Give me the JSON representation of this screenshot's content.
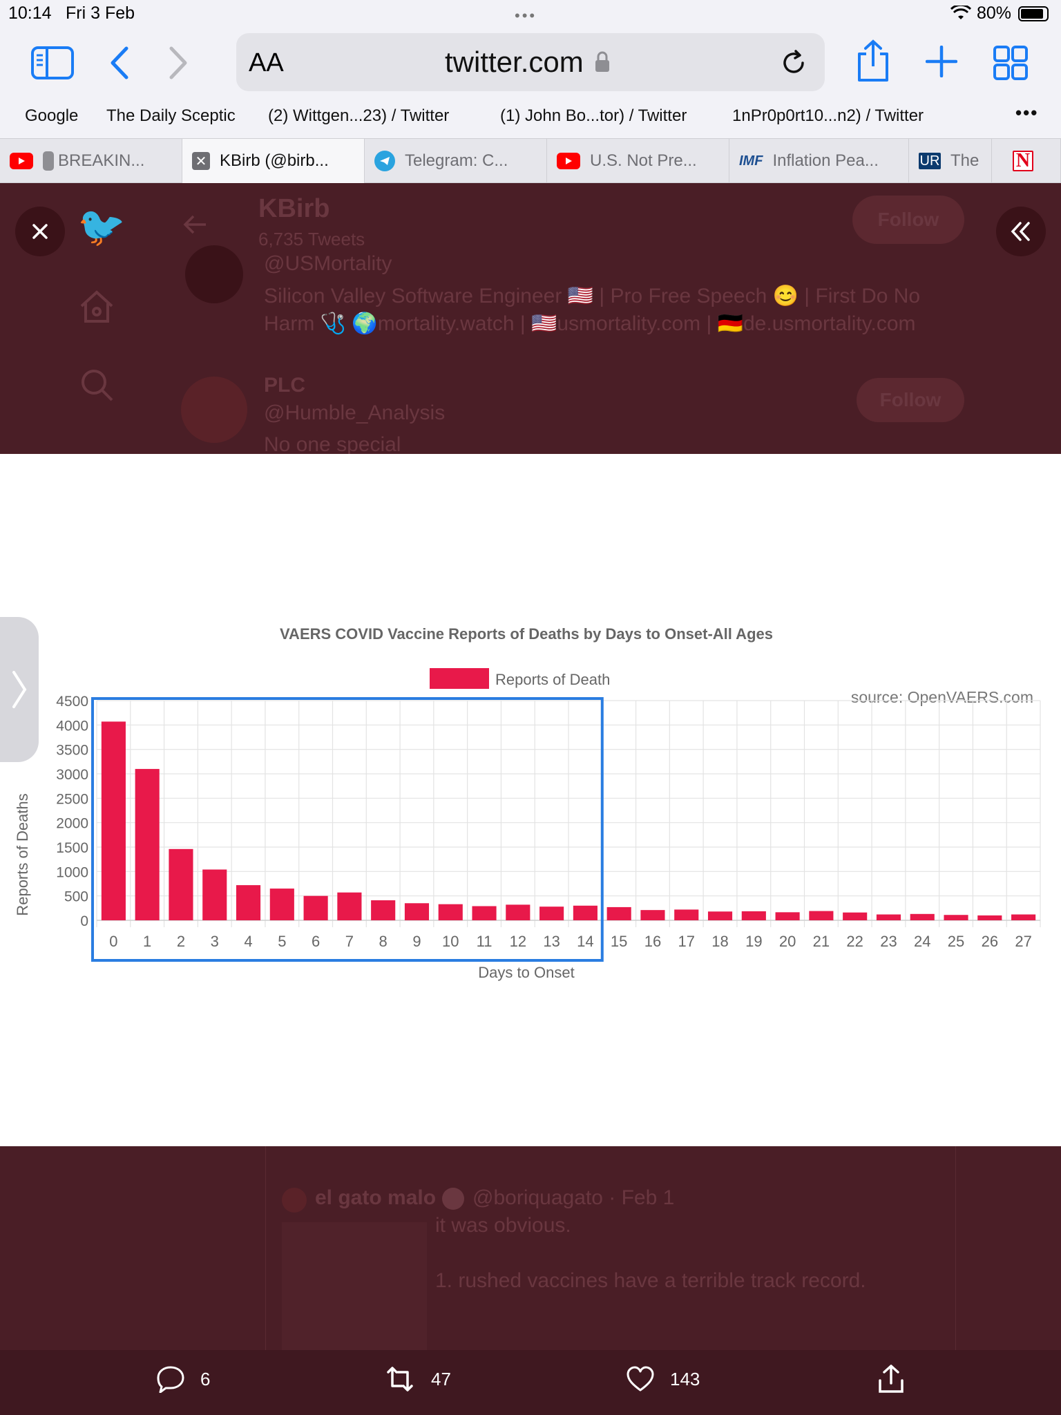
{
  "status": {
    "time": "10:14",
    "date": "Fri 3 Feb",
    "battery": "80%"
  },
  "toolbar": {
    "text_size": "AA",
    "url": "twitter.com"
  },
  "favorites": [
    "Google",
    "The Daily Sceptic",
    "(2) Wittgen...23) / Twitter",
    "(1) John Bo...tor) / Twitter",
    "1nPr0p0rt10...n2) / Twitter"
  ],
  "tabs": [
    {
      "label": "BREAKIN..."
    },
    {
      "label": "KBirb (@birb..."
    },
    {
      "label": "Telegram: C..."
    },
    {
      "label": "U.S. Not Pre..."
    },
    {
      "label": "Inflation Pea...",
      "badge": "IMF"
    },
    {
      "label": "The",
      "badge": "UR"
    },
    {
      "label": "",
      "badge": "N"
    }
  ],
  "background_top": {
    "profile1": {
      "name": "KBirb",
      "tweets": "6,735 Tweets",
      "handle": "@USMortality",
      "bio_line1": "Silicon Valley Software Engineer 🇺🇸 | Pro Free Speech 😊 | First Do No",
      "bio_line2": "Harm 🩺 🌍mortality.watch | 🇺🇸usmortality.com | 🇩🇪de.usmortality.com",
      "follow": "Follow"
    },
    "profile2": {
      "name": "PLC",
      "handle": "@Humble_Analysis",
      "bio": "No one special",
      "follow": "Follow"
    }
  },
  "background_bottom": {
    "author": "el gato malo",
    "handle": "@boriquagato · Feb 1",
    "line1": "it was obvious.",
    "line2": "1. rushed vaccines have a terrible track record."
  },
  "actions": {
    "replies": "6",
    "retweets": "47",
    "likes": "143"
  },
  "colors": {
    "bar": "#e8194a",
    "highlight": "#2a7de1",
    "overlay": "#4a1e26"
  },
  "chart_data": {
    "type": "bar",
    "title": "VAERS COVID Vaccine Reports of Deaths by Days to Onset-All Ages",
    "legend": "Reports of Death",
    "source": "source: OpenVAERS.com",
    "xlabel": "Days to Onset",
    "ylabel": "Reports of Deaths",
    "ylim": [
      0,
      4500
    ],
    "yticks": [
      "4500",
      "4000",
      "3500",
      "3000",
      "2500",
      "2000",
      "1500",
      "1000",
      "500",
      "0"
    ],
    "categories": [
      "0",
      "1",
      "2",
      "3",
      "4",
      "5",
      "6",
      "7",
      "8",
      "9",
      "10",
      "11",
      "12",
      "13",
      "14",
      "15",
      "16",
      "17",
      "18",
      "19",
      "20",
      "21",
      "22",
      "23",
      "24",
      "25",
      "26",
      "27"
    ],
    "values": [
      4070,
      3100,
      1460,
      1040,
      720,
      650,
      500,
      570,
      410,
      350,
      330,
      290,
      320,
      280,
      300,
      270,
      210,
      220,
      180,
      185,
      165,
      190,
      160,
      120,
      130,
      110,
      100,
      120
    ],
    "highlight_range": [
      "0",
      "14"
    ]
  }
}
